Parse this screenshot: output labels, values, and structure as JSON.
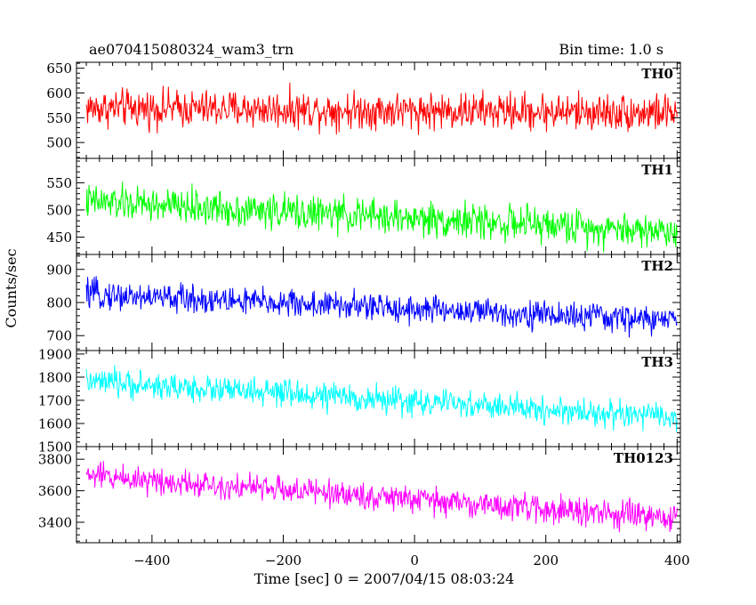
{
  "chart_data": {
    "type": "line",
    "title": "ae070415080324_wam3_trn",
    "bin_time_label": "Bin time: 1.0 s",
    "xlabel": "Time [sec] 0 = 2007/04/15 08:03:24",
    "ylabel": "Counts/sec",
    "xlim": [
      -515,
      405
    ],
    "x_ticks": [
      -400,
      -200,
      0,
      200,
      400
    ],
    "x_tick_labels": [
      "−400",
      "−200",
      "0",
      "200",
      "400"
    ],
    "time_range": [
      -500,
      400
    ],
    "bin_time_s": 1.0,
    "panels": [
      {
        "name": "TH0",
        "color": "#ff0000",
        "ylim": [
          468,
          662
        ],
        "ticks": [
          500,
          550,
          600,
          650
        ],
        "tick_labels": [
          "500",
          "550",
          "600",
          "650"
        ],
        "level_start": 570,
        "level_end": 560,
        "noise_amp": 35
      },
      {
        "name": "TH1",
        "color": "#00ff00",
        "ylim": [
          418,
          595
        ],
        "ticks": [
          450,
          500,
          550
        ],
        "tick_labels": [
          "450",
          "500",
          "550"
        ],
        "level_start": 515,
        "level_end": 460,
        "noise_amp": 30
      },
      {
        "name": "TH2",
        "color": "#0000ff",
        "ylim": [
          655,
          945
        ],
        "ticks": [
          700,
          800,
          900
        ],
        "tick_labels": [
          "700",
          "800",
          "900"
        ],
        "level_start": 825,
        "level_end": 745,
        "noise_amp": 40
      },
      {
        "name": "TH3",
        "color": "#00ffff",
        "ylim": [
          1500,
          1915
        ],
        "ticks": [
          1500,
          1600,
          1700,
          1800,
          1900
        ],
        "tick_labels": [
          "1500",
          "1600",
          "1700",
          "1800",
          "1900"
        ],
        "level_start": 1780,
        "level_end": 1625,
        "noise_amp": 55
      },
      {
        "name": "TH0123",
        "color": "#ff00ff",
        "ylim": [
          3270,
          3880
        ],
        "ticks": [
          3400,
          3600,
          3800
        ],
        "tick_labels": [
          "3400",
          "3600",
          "3800"
        ],
        "level_start": 3700,
        "level_end": 3420,
        "noise_amp": 80
      }
    ]
  }
}
